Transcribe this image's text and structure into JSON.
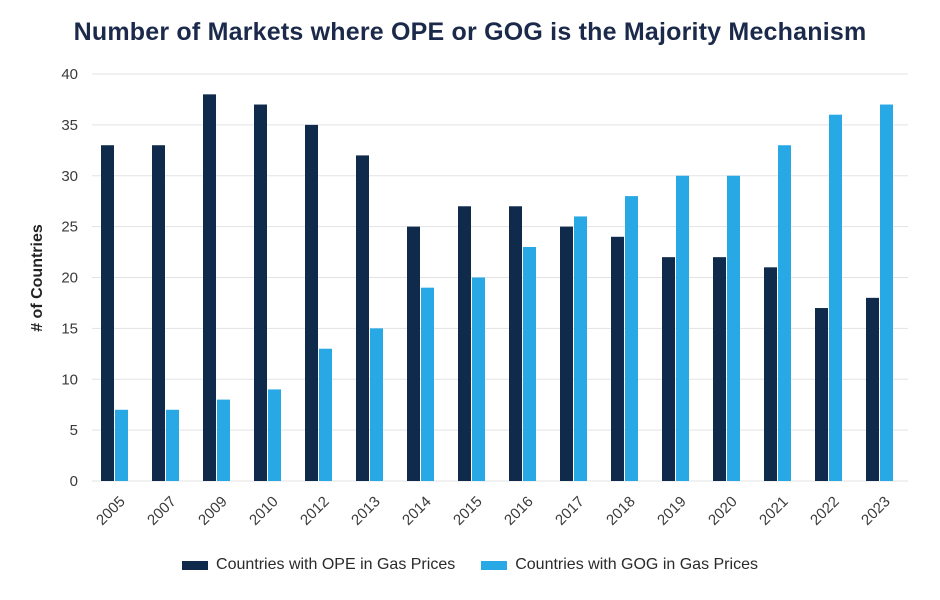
{
  "chart_data": {
    "type": "bar",
    "title": "Number of Markets where OPE or GOG is the Majority Mechanism",
    "ylabel": "# of Countries",
    "xlabel": "",
    "ylim": [
      0,
      40
    ],
    "yticks": [
      0,
      5,
      10,
      15,
      20,
      25,
      30,
      35,
      40
    ],
    "grid": true,
    "legend_position": "bottom",
    "categories": [
      "2005",
      "2007",
      "2009",
      "2010",
      "2012",
      "2013",
      "2014",
      "2015",
      "2016",
      "2017",
      "2018",
      "2019",
      "2020",
      "2021",
      "2022",
      "2023"
    ],
    "series": [
      {
        "name": "Countries with OPE in Gas Prices",
        "color": "#0f2a4a",
        "values": [
          33,
          33,
          38,
          37,
          35,
          32,
          25,
          27,
          27,
          25,
          24,
          22,
          22,
          21,
          17,
          18
        ]
      },
      {
        "name": "Countries with GOG in Gas Prices",
        "color": "#29a8e6",
        "values": [
          7,
          7,
          8,
          9,
          13,
          15,
          19,
          20,
          23,
          26,
          28,
          30,
          30,
          33,
          36,
          37
        ]
      }
    ]
  }
}
